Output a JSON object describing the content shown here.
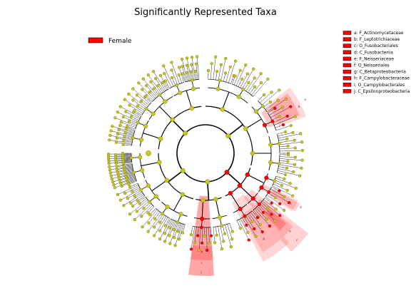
{
  "chart_data": {
    "type": "cladogram",
    "title": "Significantly Represented Taxa",
    "class_legend": [
      {
        "name": "Female",
        "color": "#ff0000"
      }
    ],
    "colors": {
      "neutral_node": "#c5c71a",
      "neutral_edge": "#6b6b00",
      "highlight_node": "#ff0000",
      "highlight_shade": "#ff0000",
      "line": "#000000"
    },
    "taxa": [
      {
        "key": "a",
        "label": "a: F_Actinomycetaceae",
        "enriched_in": "Female"
      },
      {
        "key": "b",
        "label": "b: F_Leptotrichiaceae",
        "enriched_in": "Female"
      },
      {
        "key": "c",
        "label": "c: O_Fusobacteriales",
        "enriched_in": "Female"
      },
      {
        "key": "d",
        "label": "d: C_Fusobacteriia",
        "enriched_in": "Female"
      },
      {
        "key": "e",
        "label": "e: F_Neisseriaceae",
        "enriched_in": "Female"
      },
      {
        "key": "f",
        "label": "f: O_Neisseriales",
        "enriched_in": "Female"
      },
      {
        "key": "g",
        "label": "g: C_Betaproteobacteria",
        "enriched_in": "Female"
      },
      {
        "key": "h",
        "label": "h: F_Campylobacteraceae",
        "enriched_in": "Female"
      },
      {
        "key": "i",
        "label": "i: O_Campylobacterales",
        "enriched_in": "Female"
      },
      {
        "key": "j",
        "label": "j: C_Epsilonproteobacteria",
        "enriched_in": "Female"
      }
    ],
    "sector_labels": [
      "a",
      "b",
      "c",
      "d",
      "e",
      "f",
      "g",
      "h",
      "i",
      "j"
    ]
  }
}
